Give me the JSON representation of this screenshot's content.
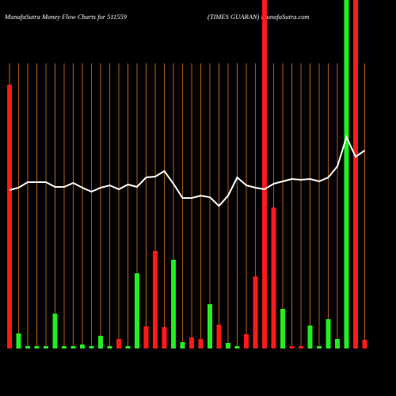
{
  "chart_data": {
    "type": "bar",
    "title": "MunafaSutra  Money Flow  Charts for 511559",
    "subtitle": "(TIMES GUARAN) MunafaSutra.com",
    "ylim": [
      0,
      440
    ],
    "grid": true,
    "grid_color": "#b8600b",
    "bars": {
      "values": [
        333,
        19,
        3,
        3,
        3,
        44,
        3,
        3,
        5,
        3,
        16,
        3,
        12,
        3,
        95,
        28,
        123,
        27,
        112,
        8,
        14,
        12,
        56,
        30,
        7,
        3,
        18,
        91,
        440,
        178,
        50,
        3,
        3,
        29,
        3,
        37,
        12,
        440,
        440,
        11
      ],
      "colors": [
        "#ff1a1a",
        "#22ee22",
        "#22ee22",
        "#22ee22",
        "#22ee22",
        "#22ee22",
        "#22ee22",
        "#22ee22",
        "#22ee22",
        "#22ee22",
        "#22ee22",
        "#22ee22",
        "#ff1a1a",
        "#22ee22",
        "#22ee22",
        "#ff1a1a",
        "#ff1a1a",
        "#ff1a1a",
        "#22ee22",
        "#22ee22",
        "#ff1a1a",
        "#ff1a1a",
        "#22ee22",
        "#ff1a1a",
        "#22ee22",
        "#22ee22",
        "#ff1a1a",
        "#ff1a1a",
        "#ff1a1a",
        "#ff1a1a",
        "#22ee22",
        "#ff1a1a",
        "#ff1a1a",
        "#22ee22",
        "#22ee22",
        "#22ee22",
        "#22ee22",
        "#22ee22",
        "#ff1a1a",
        "#ff1a1a"
      ]
    },
    "line": {
      "color": "#ffffff",
      "values": [
        200,
        203,
        210,
        210,
        210,
        204,
        204,
        209,
        203,
        198,
        203,
        206,
        201,
        207,
        204,
        216,
        217,
        224,
        208,
        190,
        190,
        193,
        191,
        180,
        193,
        216,
        206,
        203,
        201,
        208,
        211,
        214,
        213,
        214,
        211,
        216,
        230,
        267,
        242,
        250
      ]
    }
  }
}
